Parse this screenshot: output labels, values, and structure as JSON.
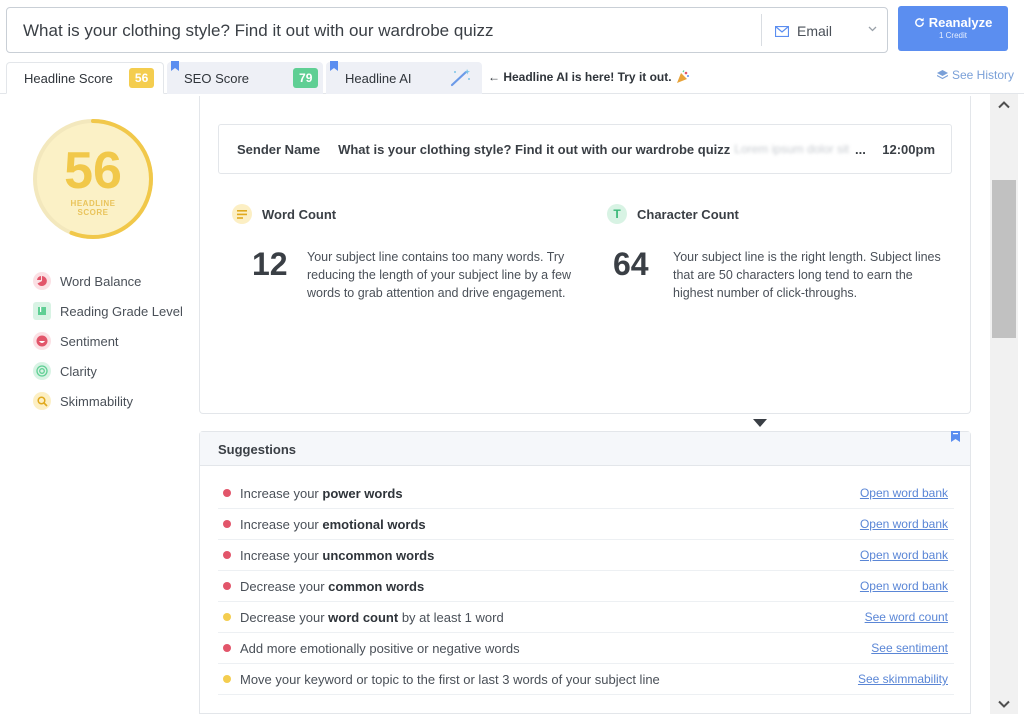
{
  "search": {
    "value": "What is your clothing style? Find it out with our wardrobe quizz",
    "channel": "Email"
  },
  "reanalyze": {
    "label": "Reanalyze",
    "sub": "1 Credit"
  },
  "tabs": [
    {
      "label": "Headline Score",
      "badge": "56"
    },
    {
      "label": "SEO Score",
      "badge": "79"
    },
    {
      "label": "Headline AI"
    }
  ],
  "ai_note": "← Headline AI is here! Try it out.",
  "see_history": "See History",
  "score": {
    "value": "56",
    "label_1": "HEADLINE",
    "label_2": "SCORE",
    "fraction": 0.56
  },
  "metrics": [
    {
      "label": "Word Balance",
      "icon": "pie-chart-icon",
      "color": "#e2556a"
    },
    {
      "label": "Reading Grade Level",
      "icon": "book-icon",
      "color": "#5fcf94"
    },
    {
      "label": "Sentiment",
      "icon": "smile-icon",
      "color": "#e2556a"
    },
    {
      "label": "Clarity",
      "icon": "target-icon",
      "color": "#5fcf94"
    },
    {
      "label": "Skimmability",
      "icon": "magnifier-icon",
      "color": "#f4cd4f"
    }
  ],
  "preview": {
    "sender": "Sender Name",
    "subject": "What is your clothing style? Find it out with our wardrobe quizz",
    "preheader": "Lorem ipsum dolor sit",
    "ellipsis": "...",
    "time": "12:00pm"
  },
  "word_count": {
    "title": "Word Count",
    "value": "12",
    "text": "Your subject line contains too many words. Try reducing the length of your subject line by a few words to grab attention and drive engagement.",
    "marker_fraction": 0.5
  },
  "char_count": {
    "title": "Character Count",
    "value": "64",
    "text": "Your subject line is the right length. Subject lines that are 50 characters long tend to earn the highest number of click-throughs.",
    "marker_fraction": 0.46
  },
  "suggestions": {
    "title": "Suggestions",
    "items": [
      {
        "pre": "Increase your ",
        "bold": "power words",
        "post": "",
        "link": "Open word bank",
        "color": "#e2556a"
      },
      {
        "pre": "Increase your ",
        "bold": "emotional words",
        "post": "",
        "link": "Open word bank",
        "color": "#e2556a"
      },
      {
        "pre": "Increase your ",
        "bold": "uncommon words",
        "post": "",
        "link": "Open word bank",
        "color": "#e2556a"
      },
      {
        "pre": "Decrease your ",
        "bold": "common words",
        "post": "",
        "link": "Open word bank",
        "color": "#e2556a"
      },
      {
        "pre": "Decrease your ",
        "bold": "word count",
        "post": " by at least 1 word",
        "link": "See word count",
        "color": "#f4cd4f"
      },
      {
        "pre": "Add more emotionally positive or negative words",
        "bold": "",
        "post": "",
        "link": "See sentiment",
        "color": "#e2556a"
      },
      {
        "pre": "Move your keyword or topic to the first or last 3 words of your subject line",
        "bold": "",
        "post": "",
        "link": "See skimmability",
        "color": "#f4cd4f"
      }
    ]
  }
}
